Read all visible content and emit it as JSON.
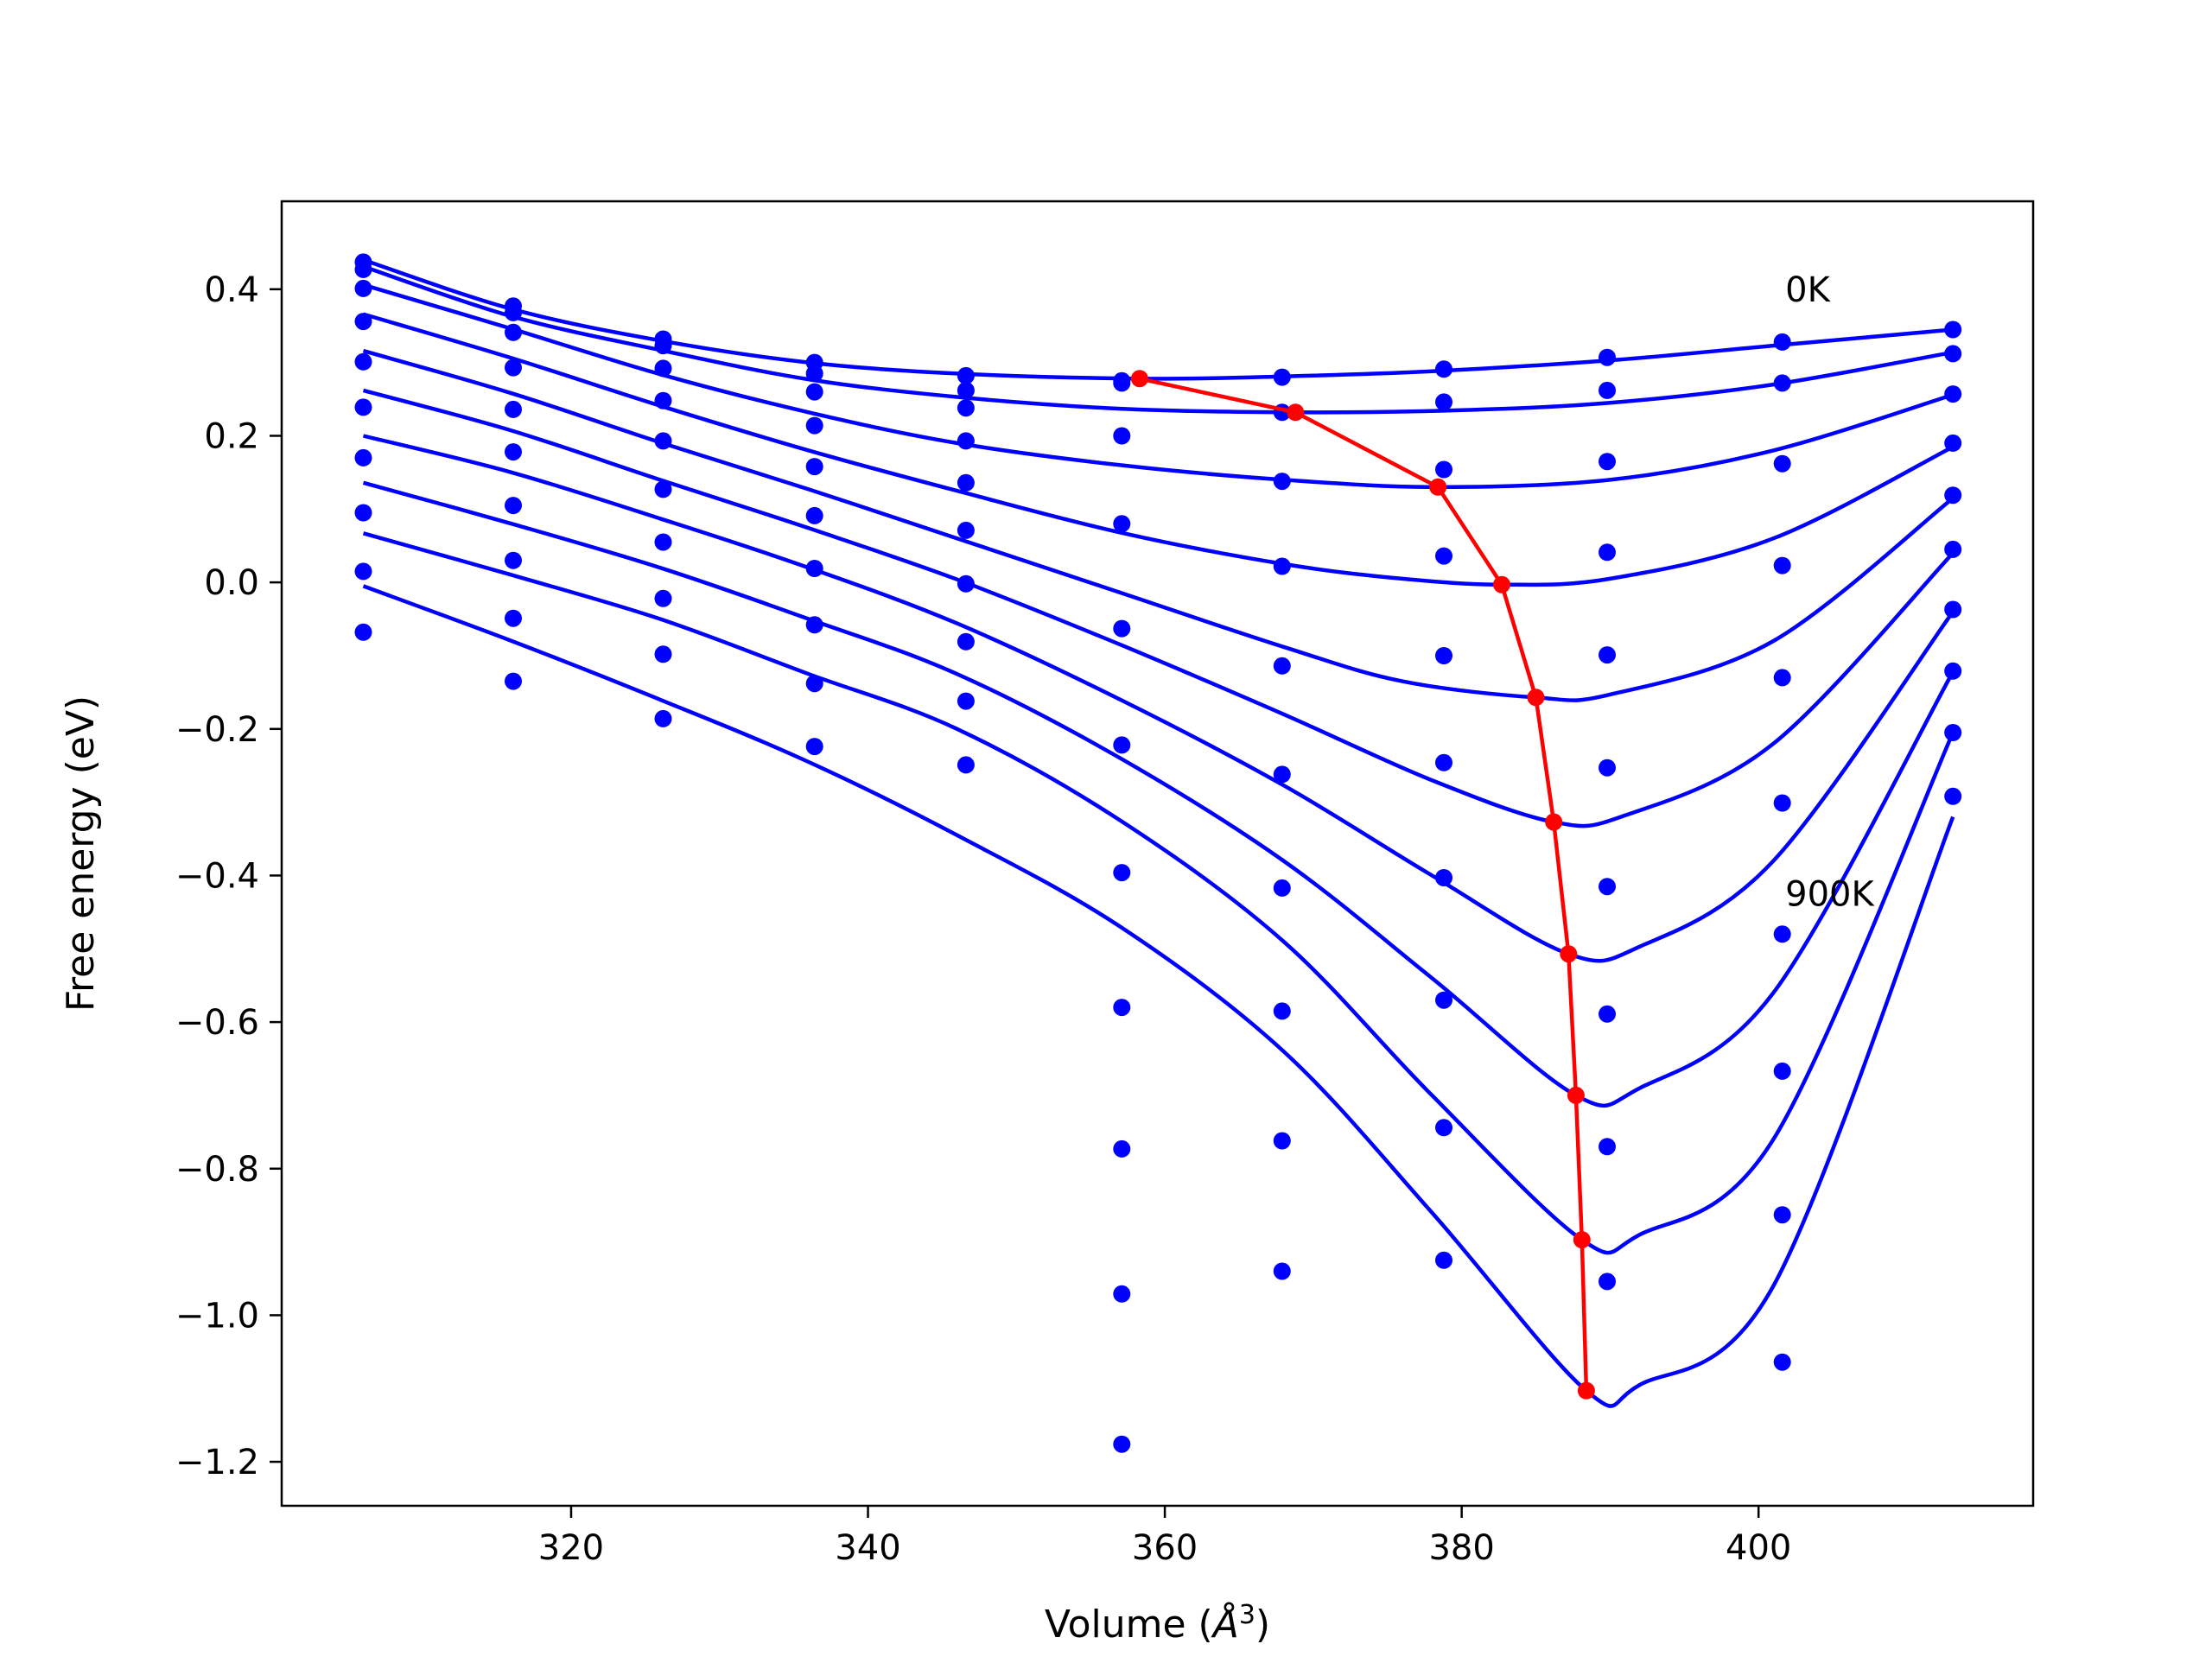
{
  "chart_data": {
    "type": "line",
    "title": "",
    "xlabel_prefix": "Volume (",
    "xlabel_symbol": "Å",
    "xlabel_exponent": "3",
    "xlabel_suffix": ")",
    "ylabel": "Free energy (eV)",
    "xlim": [
      300.5,
      418.5
    ],
    "ylim": [
      -1.26,
      0.52
    ],
    "xticks": [
      320,
      340,
      360,
      380,
      400
    ],
    "yticks": [
      0.4,
      0.2,
      0.0,
      -0.2,
      -0.4,
      -0.6,
      -0.8,
      -1.0,
      -1.2
    ],
    "xtick_labels": [
      "320",
      "340",
      "360",
      "380",
      "400"
    ],
    "ytick_labels": [
      "0.4",
      "0.2",
      "0.0",
      "−0.2",
      "−0.4",
      "−0.6",
      "−0.8",
      "−1.0",
      "−1.2"
    ],
    "grid": false,
    "legend": "none",
    "colors": {
      "curves": "#0000ff",
      "minima": "#ff0000",
      "frame": "#000000"
    },
    "annotations": [
      {
        "text": "0K",
        "x": 401.8,
        "y": 0.4
      },
      {
        "text": "900K",
        "x": 401.8,
        "y": -0.425
      }
    ],
    "volumes": [
      306.0,
      316.1,
      326.2,
      336.4,
      346.6,
      357.1,
      367.9,
      378.8,
      389.8,
      401.6,
      413.1
    ],
    "series": [
      {
        "points": [
          0.437,
          0.377,
          0.332,
          0.3,
          0.282,
          0.275,
          0.28,
          0.291,
          0.307,
          0.328,
          0.345
        ],
        "curve": [
          [
            306.0,
            0.44
          ],
          [
            316.0,
            0.373
          ],
          [
            326.0,
            0.33
          ],
          [
            336.0,
            0.3
          ],
          [
            346.0,
            0.285
          ],
          [
            358.3,
            0.278
          ],
          [
            368.0,
            0.281
          ],
          [
            378.0,
            0.288
          ],
          [
            390.0,
            0.303
          ],
          [
            401.0,
            0.323
          ],
          [
            413.1,
            0.345
          ]
        ]
      },
      {
        "points": [
          0.427,
          0.368,
          0.323,
          0.285,
          0.262,
          0.272,
          0.232,
          0.246,
          0.262,
          0.272,
          0.312
        ],
        "curve": [
          [
            306.0,
            0.431
          ],
          [
            316.0,
            0.363
          ],
          [
            326.0,
            0.317
          ],
          [
            336.0,
            0.277
          ],
          [
            346.0,
            0.253
          ],
          [
            357.0,
            0.237
          ],
          [
            368.8,
            0.232
          ],
          [
            380.0,
            0.235
          ],
          [
            390.0,
            0.245
          ],
          [
            401.0,
            0.27
          ],
          [
            413.1,
            0.314
          ]
        ]
      },
      {
        "points": [
          0.401,
          0.341,
          0.292,
          0.26,
          0.238,
          0.2,
          0.138,
          0.154,
          0.165,
          0.162,
          0.257
        ],
        "curve": [
          [
            306.0,
            0.406
          ],
          [
            316.0,
            0.346
          ],
          [
            326.0,
            0.284
          ],
          [
            336.0,
            0.232
          ],
          [
            346.0,
            0.19
          ],
          [
            357.0,
            0.16
          ],
          [
            368.0,
            0.14
          ],
          [
            378.4,
            0.13
          ],
          [
            390.0,
            0.14
          ],
          [
            401.0,
            0.18
          ],
          [
            413.1,
            0.256
          ]
        ]
      },
      {
        "points": [
          0.356,
          0.293,
          0.248,
          0.214,
          0.193,
          0.08,
          0.022,
          0.036,
          0.041,
          0.023,
          0.19
        ],
        "curve": [
          [
            306.0,
            0.366
          ],
          [
            316.0,
            0.306
          ],
          [
            326.0,
            0.241
          ],
          [
            336.0,
            0.18
          ],
          [
            346.0,
            0.125
          ],
          [
            357.0,
            0.068
          ],
          [
            368.0,
            0.025
          ],
          [
            376.0,
            0.005
          ],
          [
            382.7,
            -0.003
          ],
          [
            390.0,
            0.005
          ],
          [
            401.0,
            0.06
          ],
          [
            413.1,
            0.185
          ]
        ]
      },
      {
        "points": [
          0.301,
          0.236,
          0.193,
          0.158,
          0.136,
          -0.063,
          -0.114,
          -0.1,
          -0.099,
          -0.13,
          0.119
        ],
        "curve": [
          [
            306.0,
            0.316
          ],
          [
            316.0,
            0.258
          ],
          [
            326.0,
            0.191
          ],
          [
            336.0,
            0.127
          ],
          [
            346.0,
            0.06
          ],
          [
            357.0,
            -0.014
          ],
          [
            368.0,
            -0.088
          ],
          [
            376.0,
            -0.135
          ],
          [
            385.0,
            -0.157
          ],
          [
            390.0,
            -0.153
          ],
          [
            401.0,
            -0.08
          ],
          [
            413.1,
            0.115
          ]
        ]
      },
      {
        "points": [
          0.239,
          0.178,
          0.127,
          0.091,
          0.071,
          -0.222,
          -0.262,
          -0.246,
          -0.253,
          -0.301,
          0.045
        ],
        "curve": [
          [
            306.0,
            0.262
          ],
          [
            316.0,
            0.207
          ],
          [
            326.0,
            0.14
          ],
          [
            336.0,
            0.074
          ],
          [
            346.0,
            0.004
          ],
          [
            357.0,
            -0.085
          ],
          [
            368.0,
            -0.18
          ],
          [
            378.0,
            -0.27
          ],
          [
            386.2,
            -0.327
          ],
          [
            391.0,
            -0.318
          ],
          [
            401.0,
            -0.22
          ],
          [
            413.1,
            0.04
          ]
        ]
      },
      {
        "points": [
          0.17,
          0.105,
          0.055,
          0.019,
          -0.002,
          -0.396,
          -0.417,
          -0.403,
          -0.415,
          -0.48,
          -0.037
        ],
        "curve": [
          [
            306.0,
            0.2
          ],
          [
            316.0,
            0.15
          ],
          [
            326.0,
            0.087
          ],
          [
            336.0,
            0.02
          ],
          [
            346.0,
            -0.056
          ],
          [
            357.0,
            -0.16
          ],
          [
            368.0,
            -0.277
          ],
          [
            378.0,
            -0.4
          ],
          [
            387.2,
            -0.507
          ],
          [
            392.0,
            -0.497
          ],
          [
            401.0,
            -0.38
          ],
          [
            413.1,
            -0.04
          ]
        ]
      },
      {
        "points": [
          0.095,
          0.03,
          -0.022,
          -0.058,
          -0.081,
          -0.58,
          -0.585,
          -0.57,
          -0.589,
          -0.667,
          -0.121
        ],
        "curve": [
          [
            306.0,
            0.136
          ],
          [
            316.0,
            0.08
          ],
          [
            326.0,
            0.02
          ],
          [
            336.0,
            -0.05
          ],
          [
            346.0,
            -0.125
          ],
          [
            357.0,
            -0.24
          ],
          [
            368.0,
            -0.38
          ],
          [
            378.0,
            -0.54
          ],
          [
            387.7,
            -0.7
          ],
          [
            392.0,
            -0.69
          ],
          [
            401.0,
            -0.56
          ],
          [
            413.1,
            -0.122
          ]
        ]
      },
      {
        "points": [
          0.015,
          -0.049,
          -0.098,
          -0.138,
          -0.162,
          -0.773,
          -0.762,
          -0.744,
          -0.77,
          -0.863,
          -0.205
        ],
        "curve": [
          [
            306.0,
            0.067
          ],
          [
            316.0,
            0.01
          ],
          [
            326.0,
            -0.05
          ],
          [
            336.0,
            -0.125
          ],
          [
            346.0,
            -0.2
          ],
          [
            357.0,
            -0.325
          ],
          [
            368.0,
            -0.49
          ],
          [
            378.0,
            -0.7
          ],
          [
            388.1,
            -0.897
          ],
          [
            392.0,
            -0.89
          ],
          [
            401.0,
            -0.76
          ],
          [
            413.1,
            -0.205
          ]
        ]
      },
      {
        "points": [
          -0.068,
          -0.135,
          -0.186,
          -0.224,
          -0.249,
          -0.971,
          -0.94,
          -0.925,
          -0.954,
          -1.064,
          -0.292
        ],
        "curve": [
          [
            306.0,
            -0.005
          ],
          [
            316.0,
            -0.08
          ],
          [
            326.0,
            -0.16
          ],
          [
            336.0,
            -0.245
          ],
          [
            346.0,
            -0.345
          ],
          [
            357.0,
            -0.47
          ],
          [
            368.0,
            -0.64
          ],
          [
            378.0,
            -0.86
          ],
          [
            388.4,
            -1.103
          ],
          [
            392.0,
            -1.095
          ],
          [
            401.0,
            -0.96
          ],
          [
            413.1,
            -0.32
          ]
        ]
      }
    ],
    "minima_curve": {
      "x": [
        358.3,
        368.8,
        378.4,
        382.7,
        385.0,
        386.2,
        387.2,
        387.7,
        388.1,
        388.4
      ],
      "y": [
        0.278,
        0.232,
        0.13,
        -0.003,
        -0.157,
        -0.327,
        -0.507,
        -0.7,
        -0.897,
        -1.103
      ]
    },
    "extra_points": [
      {
        "x": 357.1,
        "y": -1.176
      }
    ]
  }
}
